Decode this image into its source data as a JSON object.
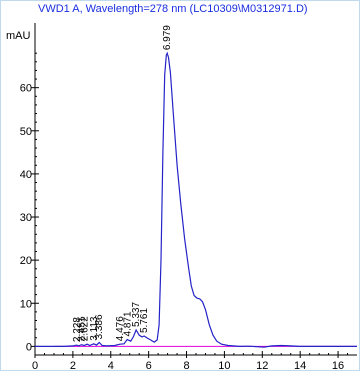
{
  "chart_data": {
    "type": "line",
    "title": "VWD1 A, Wavelength=278 nm (LC10309\\M0312971.D)",
    "ylabel": "mAU",
    "xlabel": "",
    "xlim": [
      0,
      17
    ],
    "ylim": [
      -2,
      75
    ],
    "x_ticks": [
      0,
      2,
      4,
      6,
      8,
      10,
      12,
      14,
      16
    ],
    "y_ticks": [
      0,
      10,
      20,
      30,
      40,
      50,
      60
    ],
    "grid": false,
    "colors": {
      "signal": "#2323c8",
      "baseline": "#e000e0",
      "title": "#1a2ee0",
      "axis": "#000000"
    },
    "signal": [
      [
        0,
        0.0
      ],
      [
        0.5,
        0.0
      ],
      [
        1.0,
        0.0
      ],
      [
        1.5,
        0.0
      ],
      [
        2.0,
        0.1
      ],
      [
        2.2,
        0.3
      ],
      [
        2.3,
        0.1
      ],
      [
        2.45,
        0.4
      ],
      [
        2.6,
        0.2
      ],
      [
        2.75,
        0.5
      ],
      [
        2.9,
        0.2
      ],
      [
        3.1,
        0.6
      ],
      [
        3.25,
        0.3
      ],
      [
        3.39,
        0.9
      ],
      [
        3.55,
        0.2
      ],
      [
        3.8,
        0.1
      ],
      [
        4.2,
        0.2
      ],
      [
        4.48,
        0.5
      ],
      [
        4.7,
        0.6
      ],
      [
        4.87,
        1.6
      ],
      [
        5.05,
        1.2
      ],
      [
        5.2,
        2.3
      ],
      [
        5.34,
        3.8
      ],
      [
        5.5,
        2.6
      ],
      [
        5.65,
        2.2
      ],
      [
        5.76,
        2.4
      ],
      [
        5.9,
        2.0
      ],
      [
        6.1,
        1.5
      ],
      [
        6.3,
        1.0
      ],
      [
        6.45,
        1.5
      ],
      [
        6.55,
        5.0
      ],
      [
        6.65,
        20.0
      ],
      [
        6.75,
        45.0
      ],
      [
        6.85,
        63.0
      ],
      [
        6.93,
        67.5
      ],
      [
        6.98,
        68.0
      ],
      [
        7.05,
        67.0
      ],
      [
        7.15,
        63.5
      ],
      [
        7.3,
        54.0
      ],
      [
        7.5,
        42.0
      ],
      [
        7.7,
        33.0
      ],
      [
        7.9,
        25.0
      ],
      [
        8.1,
        18.5
      ],
      [
        8.25,
        14.0
      ],
      [
        8.4,
        11.8
      ],
      [
        8.55,
        11.2
      ],
      [
        8.7,
        11.0
      ],
      [
        8.85,
        10.3
      ],
      [
        9.0,
        8.5
      ],
      [
        9.2,
        5.0
      ],
      [
        9.4,
        2.6
      ],
      [
        9.6,
        1.2
      ],
      [
        9.85,
        0.5
      ],
      [
        10.2,
        0.2
      ],
      [
        10.8,
        0.0
      ],
      [
        11.3,
        0.05
      ],
      [
        11.8,
        -0.1
      ],
      [
        12.1,
        -0.2
      ],
      [
        12.5,
        0.1
      ],
      [
        13.0,
        0.2
      ],
      [
        13.5,
        0.1
      ],
      [
        14.0,
        0.0
      ],
      [
        15.0,
        0.0
      ],
      [
        16.0,
        0.0
      ],
      [
        17.0,
        0.0
      ]
    ],
    "baseline": [
      [
        1.0,
        0.0
      ],
      [
        17.0,
        0.0
      ]
    ],
    "peak_labels": [
      "2.228",
      "2.451",
      "2.622",
      "3.113",
      "3.386",
      "4.476",
      "4.871",
      "5.337",
      "5.761",
      "6.979"
    ],
    "peaks": [
      {
        "rt": 2.228,
        "height": 0.3
      },
      {
        "rt": 2.451,
        "height": 0.4
      },
      {
        "rt": 2.622,
        "height": 0.5
      },
      {
        "rt": 3.113,
        "height": 0.6
      },
      {
        "rt": 3.386,
        "height": 0.9
      },
      {
        "rt": 4.476,
        "height": 0.5
      },
      {
        "rt": 4.871,
        "height": 1.6
      },
      {
        "rt": 5.337,
        "height": 3.8
      },
      {
        "rt": 5.761,
        "height": 2.4
      },
      {
        "rt": 6.979,
        "height": 68.0
      }
    ]
  }
}
